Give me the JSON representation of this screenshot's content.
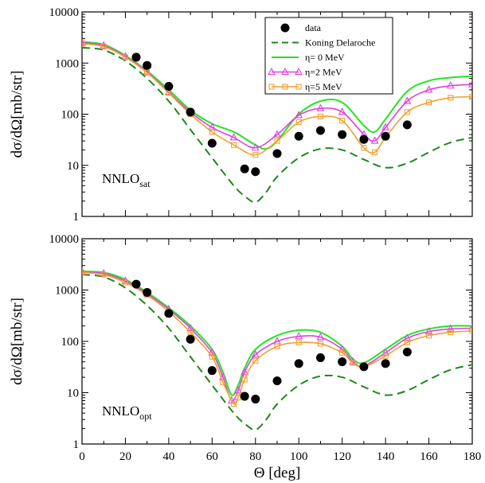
{
  "chart_data": [
    {
      "type": "line",
      "panel_label": "NNLO",
      "panel_label_sub": "sat",
      "ylabel": "dσ/dΩ[mb/str]",
      "xlabel": "",
      "xlim": [
        0,
        180
      ],
      "ylim": [
        1,
        10000
      ],
      "y_scale": "log",
      "x_ticks": [
        0,
        20,
        40,
        60,
        80,
        100,
        120,
        140,
        160,
        180
      ],
      "x_tick_labels_shown": false,
      "y_ticks": [
        1,
        10,
        100,
        1000,
        10000
      ],
      "y_tick_labels": [
        "1",
        "10",
        "100",
        "1000",
        "10000"
      ],
      "legend": {
        "placement": "top-right",
        "entries": [
          "data",
          "Koning Delaroche",
          "η= 0 MeV",
          "η=2 MeV",
          "η=5 MeV"
        ]
      },
      "colors": {
        "data": "#000000",
        "kd": "#1a8a1a",
        "eta0": "#22e622",
        "eta2": "#e040e0",
        "eta5": "#f0a030"
      },
      "data_points": {
        "x": [
          25,
          30,
          40,
          50,
          60,
          75,
          80,
          90,
          100,
          110,
          120,
          130,
          140,
          150
        ],
        "y": [
          1300,
          900,
          350,
          110,
          27,
          8.5,
          7.5,
          17,
          37,
          48,
          40,
          32,
          37,
          62
        ]
      },
      "series": [
        {
          "name": "Koning Delaroche",
          "x": [
            0,
            10,
            20,
            30,
            40,
            50,
            60,
            70,
            75,
            80,
            85,
            90,
            100,
            110,
            120,
            130,
            140,
            150,
            160,
            170,
            180
          ],
          "y": [
            2000,
            1800,
            1100,
            500,
            180,
            50,
            14,
            4,
            2.5,
            1.9,
            3,
            6,
            14,
            21,
            20,
            13,
            9,
            11,
            18,
            28,
            35
          ]
        },
        {
          "name": "η= 0 MeV",
          "x": [
            0,
            10,
            20,
            30,
            40,
            50,
            60,
            70,
            80,
            85,
            90,
            100,
            110,
            120,
            130,
            135,
            140,
            150,
            160,
            170,
            180
          ],
          "y": [
            2600,
            2300,
            1400,
            700,
            300,
            120,
            65,
            45,
            25,
            21,
            30,
            100,
            180,
            170,
            60,
            45,
            80,
            280,
            450,
            520,
            550
          ]
        },
        {
          "name": "η=2 MeV",
          "x": [
            0,
            10,
            20,
            30,
            40,
            50,
            60,
            70,
            80,
            90,
            100,
            110,
            120,
            130,
            135,
            140,
            150,
            160,
            170,
            180
          ],
          "y": [
            2500,
            2200,
            1350,
            680,
            270,
            110,
            55,
            35,
            22,
            40,
            95,
            130,
            110,
            40,
            30,
            55,
            180,
            300,
            360,
            380
          ]
        },
        {
          "name": "η=5 MeV",
          "x": [
            0,
            10,
            20,
            30,
            40,
            50,
            60,
            70,
            80,
            90,
            100,
            110,
            120,
            130,
            135,
            140,
            150,
            160,
            170,
            180
          ],
          "y": [
            2400,
            2100,
            1300,
            650,
            260,
            100,
            45,
            25,
            16,
            30,
            70,
            90,
            75,
            22,
            18,
            35,
            110,
            170,
            210,
            220
          ]
        }
      ]
    },
    {
      "type": "line",
      "panel_label": "NNLO",
      "panel_label_sub": "opt",
      "ylabel": "dσ/dΩ[mb/str]",
      "xlabel": "Θ [deg]",
      "xlim": [
        0,
        180
      ],
      "ylim": [
        1,
        10000
      ],
      "y_scale": "log",
      "x_ticks": [
        0,
        20,
        40,
        60,
        80,
        100,
        120,
        140,
        160,
        180
      ],
      "x_tick_labels": [
        "0",
        "20",
        "40",
        "60",
        "80",
        "100",
        "120",
        "140",
        "160",
        "180"
      ],
      "y_ticks": [
        1,
        10,
        100,
        1000,
        10000
      ],
      "y_tick_labels": [
        "1",
        "10",
        "100",
        "1000",
        "10000"
      ],
      "colors": {
        "data": "#000000",
        "kd": "#1a8a1a",
        "eta0": "#22e622",
        "eta2": "#e040e0",
        "eta5": "#f0a030"
      },
      "data_points": {
        "x": [
          25,
          30,
          40,
          50,
          60,
          75,
          80,
          90,
          100,
          110,
          120,
          130,
          140,
          150
        ],
        "y": [
          1300,
          900,
          350,
          110,
          27,
          8.5,
          7.5,
          17,
          37,
          48,
          40,
          32,
          37,
          62
        ]
      },
      "series": [
        {
          "name": "Koning Delaroche",
          "x": [
            0,
            10,
            20,
            30,
            40,
            50,
            60,
            70,
            75,
            80,
            85,
            90,
            100,
            110,
            120,
            130,
            140,
            150,
            160,
            170,
            180
          ],
          "y": [
            2000,
            1800,
            1100,
            500,
            180,
            50,
            14,
            4,
            2.5,
            1.9,
            3,
            6,
            14,
            21,
            20,
            13,
            9,
            11,
            18,
            28,
            35
          ]
        },
        {
          "name": "η= 0 MeV",
          "x": [
            0,
            10,
            20,
            30,
            40,
            50,
            60,
            65,
            69,
            72,
            75,
            80,
            90,
            100,
            110,
            120,
            125,
            130,
            140,
            150,
            160,
            170,
            180
          ],
          "y": [
            2300,
            2200,
            1600,
            900,
            450,
            200,
            70,
            25,
            9,
            14,
            30,
            70,
            130,
            165,
            150,
            80,
            45,
            38,
            70,
            130,
            175,
            200,
            200
          ]
        },
        {
          "name": "η=2 MeV",
          "x": [
            0,
            10,
            20,
            30,
            40,
            50,
            60,
            65,
            69,
            72,
            75,
            80,
            90,
            100,
            110,
            120,
            125,
            130,
            140,
            150,
            160,
            170,
            180
          ],
          "y": [
            2250,
            2100,
            1500,
            850,
            420,
            180,
            60,
            20,
            7,
            11,
            25,
            55,
            100,
            125,
            120,
            70,
            40,
            33,
            60,
            115,
            155,
            175,
            180
          ]
        },
        {
          "name": "η=5 MeV",
          "x": [
            0,
            10,
            20,
            30,
            40,
            50,
            60,
            65,
            70,
            72,
            75,
            80,
            90,
            100,
            110,
            120,
            125,
            130,
            140,
            150,
            160,
            170,
            180
          ],
          "y": [
            2200,
            2000,
            1400,
            800,
            380,
            150,
            50,
            16,
            6,
            8,
            18,
            42,
            80,
            95,
            90,
            60,
            38,
            32,
            52,
            95,
            130,
            150,
            160
          ]
        }
      ]
    }
  ]
}
